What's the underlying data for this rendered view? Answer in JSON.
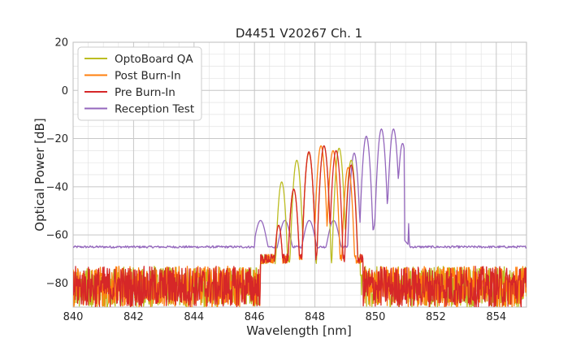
{
  "chart_data": {
    "type": "line",
    "title": "D4451 V20267 Ch. 1",
    "xlabel": "Wavelength [nm]",
    "ylabel": "Optical Power [dB]",
    "xlim": [
      840,
      855
    ],
    "ylim": [
      -90,
      20
    ],
    "x_ticks": [
      840,
      842,
      844,
      846,
      848,
      850,
      852,
      854
    ],
    "y_ticks": [
      -80,
      -60,
      -40,
      -20,
      0,
      20
    ],
    "x_tick_labels": [
      "840",
      "842",
      "844",
      "846",
      "848",
      "850",
      "852",
      "854"
    ],
    "y_tick_labels": [
      "−80",
      "−60",
      "−40",
      "−20",
      "0",
      "20"
    ],
    "grid": true,
    "legend_position": "top-left",
    "series": [
      {
        "name": "OptoBoard QA",
        "color": "#bcbd22",
        "noise_floor_range": [
          -90,
          -73
        ],
        "noise_region_nm": [
          [
            840,
            846.2
          ],
          [
            849.5,
            855
          ]
        ],
        "peaks": [
          [
            846.9,
            -38
          ],
          [
            847.4,
            -29
          ],
          [
            847.8,
            -26
          ],
          [
            848.3,
            -23
          ],
          [
            848.8,
            -24
          ],
          [
            849.2,
            -29
          ]
        ]
      },
      {
        "name": "Post Burn-In",
        "color": "#ff7f0e",
        "noise_floor_range": [
          -90,
          -73
        ],
        "noise_region_nm": [
          [
            840,
            846.2
          ],
          [
            849.6,
            855
          ]
        ],
        "peaks": [
          [
            846.8,
            -56
          ],
          [
            847.3,
            -41
          ],
          [
            847.8,
            -25.5
          ],
          [
            848.2,
            -23
          ],
          [
            848.6,
            -25
          ],
          [
            849.1,
            -32
          ]
        ]
      },
      {
        "name": "Pre Burn-In",
        "color": "#d62728",
        "noise_floor_range": [
          -90,
          -73
        ],
        "noise_region_nm": [
          [
            840,
            846.2
          ],
          [
            849.6,
            855
          ]
        ],
        "peaks": [
          [
            846.8,
            -56
          ],
          [
            847.3,
            -41
          ],
          [
            847.8,
            -25.5
          ],
          [
            848.3,
            -23
          ],
          [
            848.7,
            -25
          ],
          [
            849.2,
            -31
          ]
        ]
      },
      {
        "name": "Reception Test",
        "color": "#9467bd",
        "baseline_dB": -65,
        "peaks": [
          [
            849.3,
            -26
          ],
          [
            849.7,
            -19
          ],
          [
            850.2,
            -16
          ],
          [
            850.6,
            -16
          ],
          [
            850.9,
            -22
          ]
        ]
      }
    ]
  }
}
